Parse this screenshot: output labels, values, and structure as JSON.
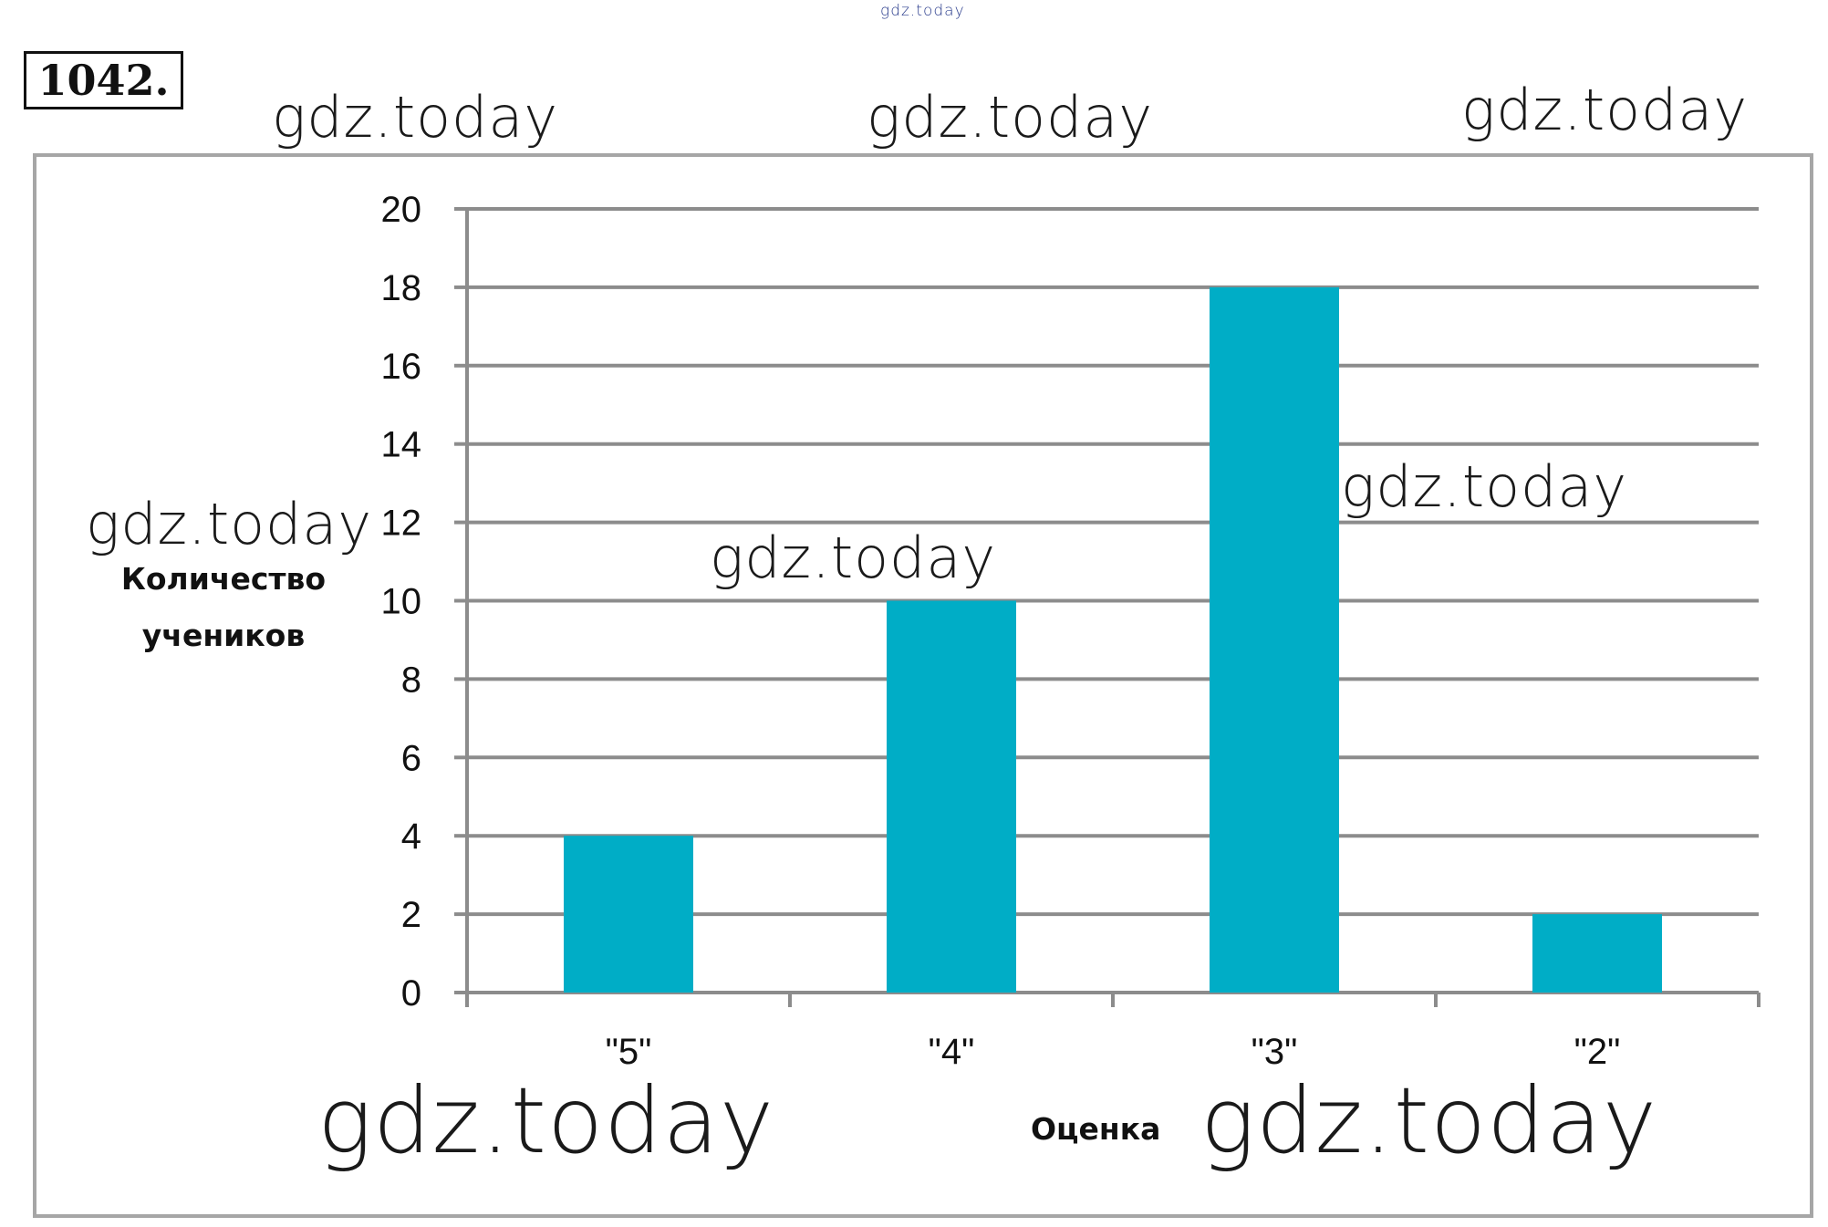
{
  "problem": {
    "number": "1042."
  },
  "watermarks": {
    "top_small": "gdz.today",
    "text": "gdz.today"
  },
  "colors": {
    "bar": "#00adc6",
    "grid": "#8c8c8c",
    "frame": "#a6a6a6"
  },
  "chart_data": {
    "type": "bar",
    "categories": [
      "\"5\"",
      "\"4\"",
      "\"3\"",
      "\"2\""
    ],
    "values": [
      4,
      10,
      18,
      2
    ],
    "xlabel": "Оценка",
    "ylabel": "Количество учеников",
    "ylim": [
      0,
      20
    ],
    "yticks": [
      0,
      2,
      4,
      6,
      8,
      10,
      12,
      14,
      16,
      18,
      20
    ],
    "grid": true,
    "legend": "none"
  }
}
